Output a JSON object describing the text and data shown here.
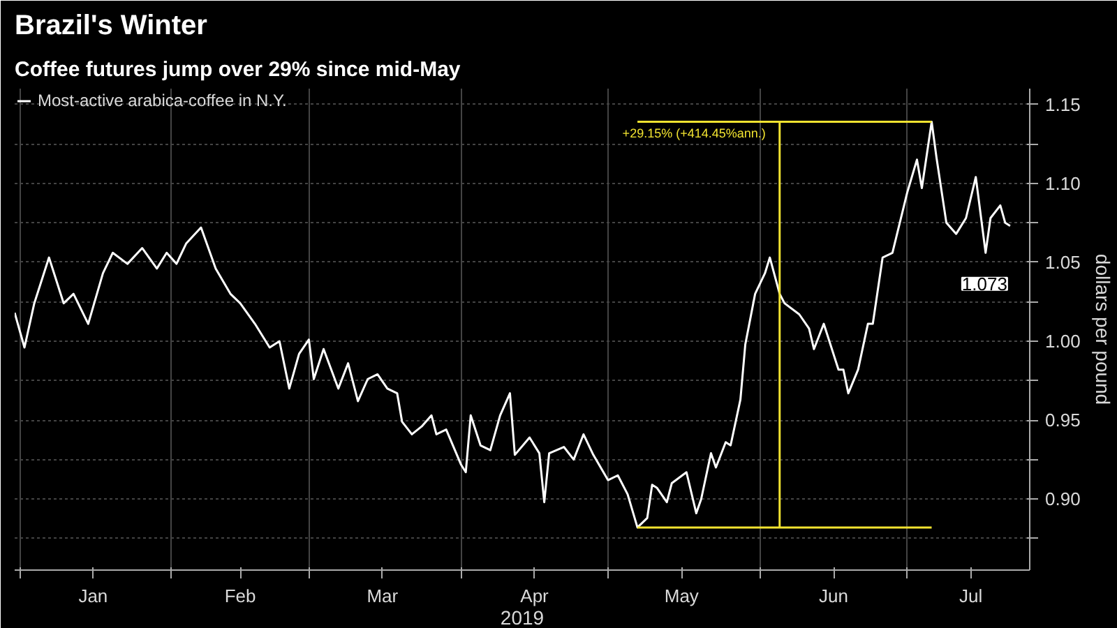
{
  "chart_data": {
    "type": "line",
    "title": "Brazil's Winter",
    "subtitle": "Coffee futures jump over 29% since mid-May",
    "xlabel": "2019",
    "ylabel": "dollars per pound",
    "xlim": [
      "2018-12-31",
      "2019-07-26"
    ],
    "xticks": [
      {
        "value": "2019-01-01",
        "label": null
      },
      {
        "value": "2019-01-16",
        "label": "Jan"
      },
      {
        "value": "2019-02-01",
        "label": null
      },
      {
        "value": "2019-02-15",
        "label": "Feb"
      },
      {
        "value": "2019-03-01",
        "label": null
      },
      {
        "value": "2019-03-16",
        "label": "Mar"
      },
      {
        "value": "2019-04-01",
        "label": null
      },
      {
        "value": "2019-04-16",
        "label": "Apr"
      },
      {
        "value": "2019-05-01",
        "label": null
      },
      {
        "value": "2019-05-16",
        "label": "May"
      },
      {
        "value": "2019-06-01",
        "label": null
      },
      {
        "value": "2019-06-16",
        "label": "Jun"
      },
      {
        "value": "2019-07-01",
        "label": null
      },
      {
        "value": "2019-07-14",
        "label": "Jul"
      }
    ],
    "ylim": [
      0.855,
      1.16
    ],
    "yticks": [
      {
        "value": 0.875,
        "label": null
      },
      {
        "value": 0.9,
        "label": "0.90"
      },
      {
        "value": 0.925,
        "label": null
      },
      {
        "value": 0.95,
        "label": "0.95"
      },
      {
        "value": 0.975,
        "label": null
      },
      {
        "value": 1.0,
        "label": "1.00"
      },
      {
        "value": 1.025,
        "label": null
      },
      {
        "value": 1.05,
        "label": "1.05"
      },
      {
        "value": 1.075,
        "label": null
      },
      {
        "value": 1.1,
        "label": "1.10"
      },
      {
        "value": 1.125,
        "label": null
      },
      {
        "value": 1.15,
        "label": "1.15"
      }
    ],
    "grid": true,
    "legend": "top left",
    "marker": "none",
    "line_style": "solid",
    "series": [
      {
        "name": "Most-active arabica-coffee in N.Y.",
        "color": "#ffffff",
        "x": [
          "2018-12-31",
          "2019-01-02",
          "2019-01-04",
          "2019-01-07",
          "2019-01-10",
          "2019-01-12",
          "2019-01-15",
          "2019-01-18",
          "2019-01-20",
          "2019-01-23",
          "2019-01-26",
          "2019-01-29",
          "2019-01-31",
          "2019-02-02",
          "2019-02-04",
          "2019-02-07",
          "2019-02-10",
          "2019-02-13",
          "2019-02-15",
          "2019-02-18",
          "2019-02-21",
          "2019-02-23",
          "2019-02-25",
          "2019-02-27",
          "2019-03-01",
          "2019-03-02",
          "2019-03-04",
          "2019-03-07",
          "2019-03-09",
          "2019-03-11",
          "2019-03-13",
          "2019-03-15",
          "2019-03-17",
          "2019-03-19",
          "2019-03-20",
          "2019-03-22",
          "2019-03-24",
          "2019-03-26",
          "2019-03-27",
          "2019-03-29",
          "2019-04-01",
          "2019-04-02",
          "2019-04-03",
          "2019-04-05",
          "2019-04-07",
          "2019-04-09",
          "2019-04-11",
          "2019-04-12",
          "2019-04-15",
          "2019-04-17",
          "2019-04-18",
          "2019-04-19",
          "2019-04-22",
          "2019-04-24",
          "2019-04-26",
          "2019-04-28",
          "2019-05-01",
          "2019-05-03",
          "2019-05-05",
          "2019-05-07",
          "2019-05-09",
          "2019-05-10",
          "2019-05-11",
          "2019-05-13",
          "2019-05-14",
          "2019-05-17",
          "2019-05-19",
          "2019-05-20",
          "2019-05-22",
          "2019-05-23",
          "2019-05-25",
          "2019-05-26",
          "2019-05-28",
          "2019-05-29",
          "2019-05-31",
          "2019-06-02",
          "2019-06-03",
          "2019-06-05",
          "2019-06-06",
          "2019-06-09",
          "2019-06-11",
          "2019-06-12",
          "2019-06-14",
          "2019-06-17",
          "2019-06-18",
          "2019-06-19",
          "2019-06-21",
          "2019-06-23",
          "2019-06-24",
          "2019-06-26",
          "2019-06-28",
          "2019-07-01",
          "2019-07-03",
          "2019-07-04",
          "2019-07-06",
          "2019-07-07",
          "2019-07-09",
          "2019-07-11",
          "2019-07-13",
          "2019-07-15",
          "2019-07-17",
          "2019-07-18",
          "2019-07-20",
          "2019-07-21",
          "2019-07-22"
        ],
        "values": [
          1.018,
          0.996,
          1.024,
          1.053,
          1.024,
          1.03,
          1.011,
          1.043,
          1.056,
          1.049,
          1.059,
          1.046,
          1.056,
          1.049,
          1.062,
          1.072,
          1.046,
          1.03,
          1.024,
          1.011,
          0.996,
          1.0,
          0.97,
          0.992,
          1.001,
          0.976,
          0.995,
          0.97,
          0.986,
          0.962,
          0.976,
          0.979,
          0.97,
          0.967,
          0.949,
          0.941,
          0.946,
          0.953,
          0.941,
          0.944,
          0.922,
          0.917,
          0.953,
          0.934,
          0.931,
          0.953,
          0.967,
          0.928,
          0.939,
          0.929,
          0.898,
          0.929,
          0.933,
          0.925,
          0.941,
          0.928,
          0.912,
          0.915,
          0.903,
          0.882,
          0.888,
          0.909,
          0.907,
          0.898,
          0.91,
          0.917,
          0.891,
          0.9,
          0.929,
          0.92,
          0.936,
          0.934,
          0.963,
          0.998,
          1.03,
          1.043,
          1.053,
          1.03,
          1.024,
          1.017,
          1.008,
          0.995,
          1.011,
          0.982,
          0.982,
          0.967,
          0.982,
          1.011,
          1.011,
          1.053,
          1.056,
          1.094,
          1.115,
          1.097,
          1.139,
          1.116,
          1.075,
          1.068,
          1.078,
          1.104,
          1.056,
          1.078,
          1.086,
          1.075,
          1.073
        ]
      },
      {
        "color": "#f2e330",
        "x": [
          "2019-05-07",
          "2019-07-06"
        ],
        "values": [
          0.882,
          0.882
        ]
      },
      {
        "color": "#f2e330",
        "x": [
          "2019-05-07",
          "2019-07-06"
        ],
        "values": [
          1.139,
          1.139
        ]
      },
      {
        "color": "#f2e330",
        "x": [
          "2019-06-05",
          "2019-06-05"
        ],
        "values": [
          0.882,
          1.139
        ]
      }
    ],
    "annotations": [
      {
        "text": "+29.15% (+414.45%ann.)",
        "x": "2019-06-05",
        "y": 1.139
      },
      {
        "text": "1.073",
        "x": "2019-07-22",
        "y": 1.073
      }
    ]
  }
}
